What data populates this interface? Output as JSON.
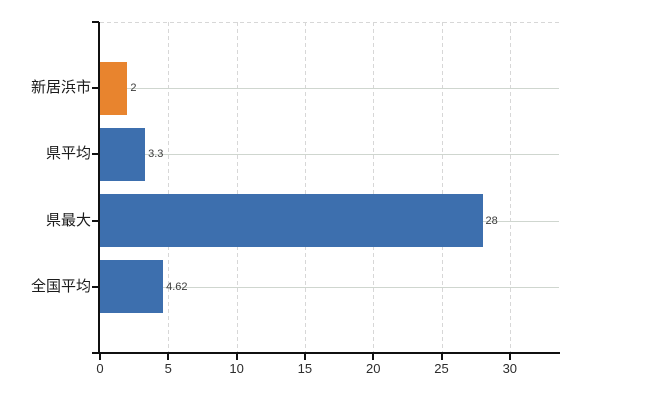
{
  "chart_data": {
    "type": "bar",
    "orientation": "horizontal",
    "title": "",
    "xlabel": "",
    "ylabel": "",
    "categories": [
      "新居浜市",
      "県平均",
      "県最大",
      "全国平均"
    ],
    "values": [
      2,
      3.3,
      28,
      4.62
    ],
    "value_labels": [
      "2",
      "3.3",
      "28",
      "4.62"
    ],
    "bar_colors": [
      "#e8842e",
      "#3d6fae",
      "#3d6fae",
      "#3d6fae"
    ],
    "xlim": [
      0,
      33.6
    ],
    "xticks": [
      0,
      5,
      10,
      15,
      20,
      25,
      30
    ],
    "grid": {
      "vertical_gridlines": "dashed",
      "horizontal_gridlines": "solid-at-category-centers",
      "top_border": "dashed"
    },
    "legend": "none",
    "colors": {
      "axis": "#101010",
      "vertical_gridline": "#d7d7d7",
      "horizontal_gridline": "#cfd6cf",
      "value_label_text": "#3c3c3c",
      "tick_label_text": "#2d2d2d",
      "category_label_text": "#1b1b1b",
      "background": "#ffffff"
    }
  }
}
